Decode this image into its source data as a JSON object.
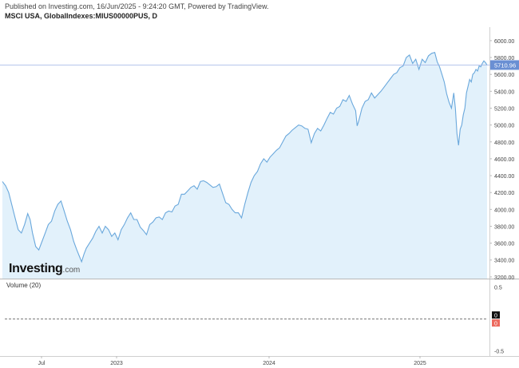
{
  "header": {
    "published": "Published on Investing.com, 16/Jun/2025 - 9:24:20 GMT, Powered by TradingView.",
    "symbol": "MSCI USA, GlobalIndexes:MIUS00000PUS, D"
  },
  "logo": {
    "main": "Investing",
    "suffix": ".com"
  },
  "volume_panel": {
    "title": "Volume (20)"
  },
  "colors": {
    "line": "#6aa8dc",
    "area": "#e2f1fb",
    "last_price_bg": "#6a8fd3",
    "last_price_line": "#9fb2e6",
    "volume_label_dark": "#111111",
    "volume_label_red": "#ec6a5e"
  },
  "chart_data": [
    {
      "type": "area",
      "title": "MSCI USA, GlobalIndexes:MIUS00000PUS, D",
      "x_tick_labels": [
        "Jul",
        "2023",
        "2024",
        "2025"
      ],
      "y_tick_labels": [
        "3200.00",
        "3400.00",
        "3600.00",
        "3800.00",
        "4000.00",
        "4200.00",
        "4400.00",
        "4600.00",
        "4800.00",
        "5000.00",
        "5200.00",
        "5400.00",
        "5600.00",
        "5800.00",
        "6000.00"
      ],
      "ylim": [
        3180,
        6160
      ],
      "grid": false,
      "last_value": 5710.96,
      "last_value_label": "5710.96",
      "series": [
        {
          "values": [
            [
              0,
              4330
            ],
            [
              4,
              4280
            ],
            [
              8,
              4200
            ],
            [
              12,
              4050
            ],
            [
              16,
              3900
            ],
            [
              20,
              3760
            ],
            [
              24,
              3720
            ],
            [
              28,
              3820
            ],
            [
              32,
              3950
            ],
            [
              35,
              3880
            ],
            [
              38,
              3720
            ],
            [
              42,
              3560
            ],
            [
              46,
              3520
            ],
            [
              50,
              3620
            ],
            [
              54,
              3720
            ],
            [
              58,
              3820
            ],
            [
              62,
              3860
            ],
            [
              66,
              3980
            ],
            [
              70,
              4060
            ],
            [
              74,
              4100
            ],
            [
              78,
              3980
            ],
            [
              82,
              3860
            ],
            [
              86,
              3760
            ],
            [
              90,
              3620
            ],
            [
              94,
              3520
            ],
            [
              97,
              3450
            ],
            [
              100,
              3380
            ],
            [
              103,
              3470
            ],
            [
              106,
              3540
            ],
            [
              110,
              3600
            ],
            [
              114,
              3660
            ],
            [
              118,
              3740
            ],
            [
              122,
              3800
            ],
            [
              126,
              3720
            ],
            [
              130,
              3800
            ],
            [
              134,
              3760
            ],
            [
              138,
              3680
            ],
            [
              142,
              3720
            ],
            [
              146,
              3640
            ],
            [
              150,
              3760
            ],
            [
              154,
              3820
            ],
            [
              158,
              3900
            ],
            [
              162,
              3960
            ],
            [
              166,
              3880
            ],
            [
              170,
              3880
            ],
            [
              174,
              3790
            ],
            [
              178,
              3750
            ],
            [
              182,
              3700
            ],
            [
              186,
              3820
            ],
            [
              190,
              3850
            ],
            [
              194,
              3900
            ],
            [
              198,
              3910
            ],
            [
              202,
              3880
            ],
            [
              206,
              3960
            ],
            [
              210,
              3980
            ],
            [
              214,
              3970
            ],
            [
              218,
              4040
            ],
            [
              222,
              4060
            ],
            [
              226,
              4180
            ],
            [
              230,
              4180
            ],
            [
              234,
              4220
            ],
            [
              238,
              4260
            ],
            [
              242,
              4280
            ],
            [
              246,
              4240
            ],
            [
              250,
              4330
            ],
            [
              254,
              4340
            ],
            [
              258,
              4320
            ],
            [
              262,
              4290
            ],
            [
              266,
              4260
            ],
            [
              270,
              4270
            ],
            [
              274,
              4300
            ],
            [
              278,
              4190
            ],
            [
              282,
              4080
            ],
            [
              286,
              4060
            ],
            [
              290,
              4000
            ],
            [
              294,
              3960
            ],
            [
              298,
              3960
            ],
            [
              302,
              3900
            ],
            [
              306,
              4060
            ],
            [
              310,
              4200
            ],
            [
              314,
              4320
            ],
            [
              318,
              4400
            ],
            [
              322,
              4450
            ],
            [
              326,
              4540
            ],
            [
              330,
              4600
            ],
            [
              334,
              4560
            ],
            [
              338,
              4620
            ],
            [
              342,
              4660
            ],
            [
              346,
              4700
            ],
            [
              350,
              4730
            ],
            [
              354,
              4800
            ],
            [
              358,
              4870
            ],
            [
              362,
              4900
            ],
            [
              366,
              4940
            ],
            [
              370,
              4970
            ],
            [
              374,
              5000
            ],
            [
              378,
              4990
            ],
            [
              382,
              4960
            ],
            [
              386,
              4950
            ],
            [
              390,
              4790
            ],
            [
              394,
              4900
            ],
            [
              398,
              4960
            ],
            [
              402,
              4930
            ],
            [
              406,
              5000
            ],
            [
              410,
              5080
            ],
            [
              414,
              5150
            ],
            [
              418,
              5130
            ],
            [
              422,
              5200
            ],
            [
              426,
              5220
            ],
            [
              430,
              5300
            ],
            [
              434,
              5280
            ],
            [
              438,
              5350
            ],
            [
              442,
              5250
            ],
            [
              446,
              5170
            ],
            [
              448,
              4990
            ],
            [
              450,
              5050
            ],
            [
              454,
              5200
            ],
            [
              458,
              5280
            ],
            [
              462,
              5300
            ],
            [
              466,
              5380
            ],
            [
              470,
              5320
            ],
            [
              474,
              5360
            ],
            [
              478,
              5400
            ],
            [
              482,
              5450
            ],
            [
              486,
              5500
            ],
            [
              490,
              5550
            ],
            [
              494,
              5600
            ],
            [
              498,
              5620
            ],
            [
              502,
              5680
            ],
            [
              506,
              5700
            ],
            [
              510,
              5800
            ],
            [
              514,
              5830
            ],
            [
              518,
              5730
            ],
            [
              522,
              5780
            ],
            [
              526,
              5660
            ],
            [
              530,
              5780
            ],
            [
              534,
              5740
            ],
            [
              538,
              5820
            ],
            [
              542,
              5850
            ],
            [
              546,
              5860
            ],
            [
              549,
              5750
            ],
            [
              552,
              5690
            ],
            [
              555,
              5600
            ],
            [
              558,
              5510
            ],
            [
              561,
              5370
            ],
            [
              564,
              5270
            ],
            [
              567,
              5200
            ],
            [
              570,
              5380
            ],
            [
              572,
              5200
            ],
            [
              574,
              4900
            ],
            [
              576,
              4760
            ],
            [
              578,
              4950
            ],
            [
              580,
              5000
            ],
            [
              582,
              5120
            ],
            [
              584,
              5200
            ],
            [
              586,
              5380
            ],
            [
              588,
              5460
            ],
            [
              590,
              5540
            ],
            [
              592,
              5510
            ],
            [
              594,
              5600
            ],
            [
              596,
              5620
            ],
            [
              598,
              5660
            ],
            [
              600,
              5640
            ],
            [
              602,
              5700
            ],
            [
              604,
              5690
            ],
            [
              606,
              5730
            ],
            [
              608,
              5760
            ],
            [
              610,
              5740
            ],
            [
              612,
              5711
            ]
          ]
        }
      ]
    },
    {
      "type": "line",
      "title": "Volume (20)",
      "y_tick_labels": [
        "0.5",
        "-0.5"
      ],
      "ylim": [
        -0.58,
        0.62
      ],
      "value": 0,
      "value_labels": [
        "0",
        "0"
      ]
    }
  ]
}
